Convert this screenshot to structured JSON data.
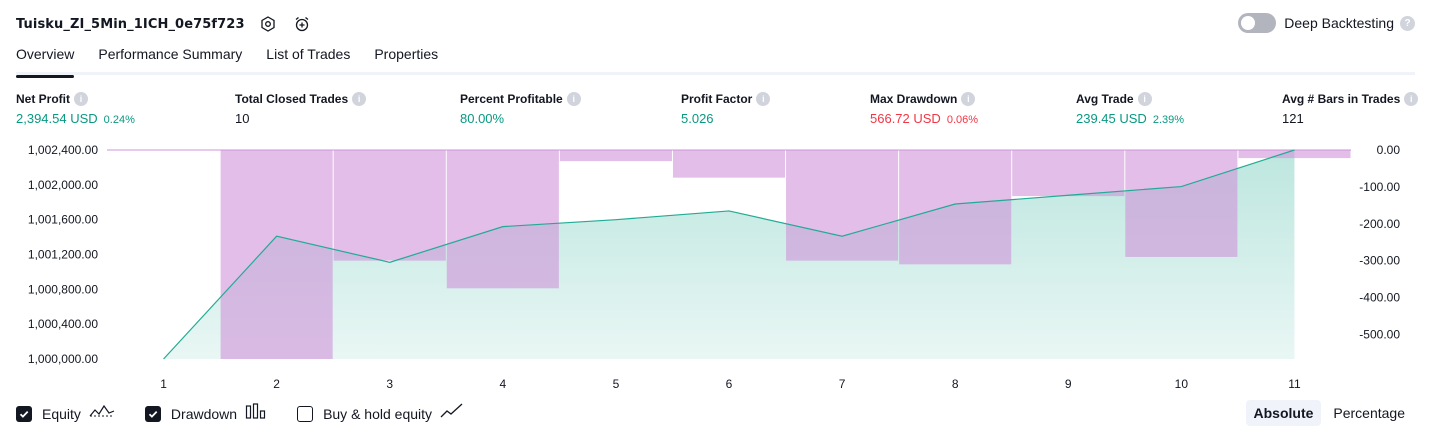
{
  "header": {
    "strategy_name": "Tuisku_ZI_5Min_1ICH_0e75f723",
    "deep_backtesting_label": "Deep Backtesting",
    "deep_backtesting_enabled": false
  },
  "tabs": [
    {
      "label": "Overview",
      "active": true
    },
    {
      "label": "Performance Summary",
      "active": false
    },
    {
      "label": "List of Trades",
      "active": false
    },
    {
      "label": "Properties",
      "active": false
    }
  ],
  "stats": [
    {
      "title": "Net Profit",
      "value": "2,394.54 USD",
      "pct": "0.24%",
      "color": "green"
    },
    {
      "title": "Total Closed Trades",
      "value": "10",
      "pct": "",
      "color": "dark"
    },
    {
      "title": "Percent Profitable",
      "value": "80.00%",
      "pct": "",
      "color": "green"
    },
    {
      "title": "Profit Factor",
      "value": "5.026",
      "pct": "",
      "color": "green"
    },
    {
      "title": "Max Drawdown",
      "value": "566.72 USD",
      "pct": "0.06%",
      "color": "red"
    },
    {
      "title": "Avg Trade",
      "value": "239.45 USD",
      "pct": "2.39%",
      "color": "green"
    },
    {
      "title": "Avg # Bars in Trades",
      "value": "121",
      "pct": "",
      "color": "dark"
    }
  ],
  "chart_data": {
    "type": "area",
    "x": [
      1,
      2,
      3,
      4,
      5,
      6,
      7,
      8,
      9,
      10,
      11
    ],
    "left_axis": {
      "ticks": [
        "1,002,400.00",
        "1,002,000.00",
        "1,001,600.00",
        "1,001,200.00",
        "1,000,800.00",
        "1,000,400.00",
        "1,000,000.00"
      ],
      "min": 1000000,
      "max": 1002400
    },
    "right_axis": {
      "ticks": [
        "0.00",
        "-100.00",
        "-200.00",
        "-300.00",
        "-400.00",
        "-500.00"
      ],
      "min": -566.72,
      "max": 0
    },
    "series": [
      {
        "name": "Equity",
        "axis": "left",
        "color": "#22ab94",
        "values": [
          1000000,
          1001410,
          1001110,
          1001520,
          1001600,
          1001700,
          1001410,
          1001780,
          1001880,
          1001980,
          1002400
        ]
      },
      {
        "name": "Drawdown",
        "axis": "right",
        "color": "#ce93d8",
        "values": [
          0,
          -566.72,
          -300,
          -375,
          -30,
          -75,
          -300,
          -310,
          -125,
          -290,
          -22
        ]
      }
    ]
  },
  "legend": [
    {
      "label": "Equity",
      "checked": true,
      "icon": "equity-icon"
    },
    {
      "label": "Drawdown",
      "checked": true,
      "icon": "drawdown-icon"
    },
    {
      "label": "Buy & hold equity",
      "checked": false,
      "icon": "buy-hold-icon"
    }
  ],
  "modes": [
    {
      "label": "Absolute",
      "active": true
    },
    {
      "label": "Percentage",
      "active": false
    }
  ]
}
